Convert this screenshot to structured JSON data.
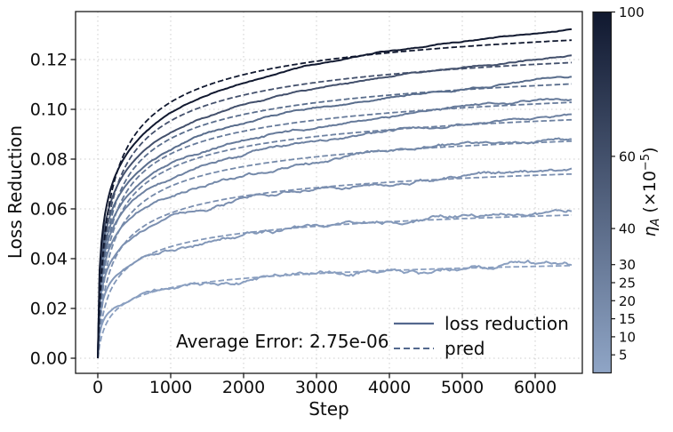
{
  "figure": {
    "ylabel": "Loss Reduction",
    "xlabel": "Step",
    "annotation": "Average Error: 2.75e-06",
    "legend": {
      "solid_label": "loss reduction",
      "dashed_label": "pred",
      "line_color": "#53688e"
    }
  },
  "chart_data": {
    "type": "line",
    "title": "",
    "xlabel": "Step",
    "ylabel": "Loss Reduction",
    "grid": true,
    "xlim": [
      -305,
      6646
    ],
    "ylim": [
      -0.006,
      0.139
    ],
    "xticks": {
      "values": [
        0,
        1000,
        2000,
        3000,
        4000,
        5000,
        6000
      ],
      "labels": [
        "0",
        "1000",
        "2000",
        "3000",
        "4000",
        "5000",
        "6000"
      ]
    },
    "yticks": {
      "values": [
        0.0,
        0.02,
        0.04,
        0.06,
        0.08,
        0.1,
        0.12
      ],
      "labels": [
        "0.00",
        "0.02",
        "0.04",
        "0.06",
        "0.08",
        "0.10",
        "0.12"
      ]
    },
    "legend_entries": [
      "loss reduction",
      "pred"
    ],
    "annotation": "Average Error: 2.75e-06",
    "colorbar": {
      "range": [
        0,
        100
      ],
      "tick_values": [
        5,
        10,
        15,
        20,
        25,
        30,
        40,
        60,
        100
      ],
      "tick_labels": [
        "5",
        "10",
        "15",
        "20",
        "25",
        "30",
        "40",
        "60",
        "100"
      ],
      "color_top": "#10182f",
      "color_bottom": "#8fa5c6",
      "label": {
        "eta": "η",
        "sub": "A",
        "prefix": "(×10",
        "exp": "−5",
        "close": ")"
      }
    },
    "x_max_step": 6500,
    "steps_sampled": [
      500,
      1000,
      2000,
      4000,
      6400
    ],
    "series": [
      {
        "eta": 5,
        "color": "#8a9fc0",
        "final": 0.0375,
        "pred_final": 0.0372,
        "values": [
          0.0245,
          0.028,
          0.0315,
          0.035,
          0.0374
        ],
        "pred_b": 0.26,
        "noise_amp": 0.0011
      },
      {
        "eta": 10,
        "color": "#8297b8",
        "final": 0.059,
        "pred_final": 0.0575,
        "values": [
          0.0386,
          0.0441,
          0.0496,
          0.0551,
          0.0589
        ],
        "pred_b": 0.3,
        "noise_amp": 0.0009
      },
      {
        "eta": 15,
        "color": "#7b8fb0",
        "final": 0.0755,
        "pred_final": 0.074,
        "values": [
          0.0494,
          0.0564,
          0.0635,
          0.0706,
          0.0753
        ],
        "pred_b": 0.32,
        "noise_amp": 0.0008
      },
      {
        "eta": 20,
        "color": "#7489a9",
        "final": 0.088,
        "pred_final": 0.0872,
        "values": [
          0.0576,
          0.0658,
          0.074,
          0.0822,
          0.0878
        ],
        "pred_b": 0.33,
        "noise_amp": 0.0007
      },
      {
        "eta": 25,
        "color": "#6d81a1",
        "final": 0.0972,
        "pred_final": 0.0958,
        "values": [
          0.0636,
          0.0726,
          0.0817,
          0.0908,
          0.097
        ],
        "pred_b": 0.34,
        "noise_amp": 0.0006
      },
      {
        "eta": 30,
        "color": "#667a9a",
        "final": 0.1043,
        "pred_final": 0.1028,
        "values": [
          0.0682,
          0.0779,
          0.0877,
          0.0975,
          0.1041
        ],
        "pred_b": 0.345,
        "noise_amp": 0.0005
      },
      {
        "eta": 40,
        "color": "#596d8c",
        "final": 0.1125,
        "pred_final": 0.1102,
        "values": [
          0.0736,
          0.0841,
          0.0946,
          0.1051,
          0.1123
        ],
        "pred_b": 0.35,
        "noise_amp": 0.0004
      },
      {
        "eta": 60,
        "color": "#43506c",
        "final": 0.1215,
        "pred_final": 0.1188,
        "values": [
          0.0795,
          0.0908,
          0.1022,
          0.1135,
          0.1213
        ],
        "pred_b": 0.355,
        "noise_amp": 0.0003
      },
      {
        "eta": 100,
        "color": "#10182f",
        "final": 0.132,
        "pred_final": 0.1278,
        "values": [
          0.0863,
          0.0986,
          0.111,
          0.1233,
          0.1317
        ],
        "pred_b": 0.36,
        "noise_amp": 0.00022
      }
    ],
    "solid_shape": {
      "model": "log",
      "s": 4
    },
    "pred_shape": {
      "model": "saturating_power",
      "c": 50
    }
  }
}
